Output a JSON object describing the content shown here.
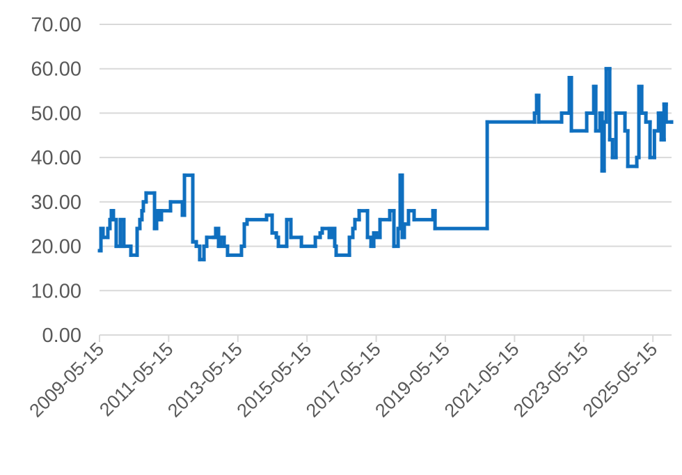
{
  "chart_data": {
    "type": "step-line",
    "step": "post",
    "x": [
      "2009-05-15",
      "2009-05-30",
      "2009-06-21",
      "2009-08-11",
      "2009-09-02",
      "2009-09-17",
      "2009-10-09",
      "2009-11-07",
      "2009-12-21",
      "2010-01-27",
      "2010-04-11",
      "2010-06-16",
      "2010-07-15",
      "2010-08-06",
      "2010-08-21",
      "2010-09-19",
      "2010-12-17",
      "2011-01-08",
      "2011-02-06",
      "2011-02-28",
      "2011-06-04",
      "2011-10-07",
      "2011-10-29",
      "2012-01-25",
      "2012-03-02",
      "2012-04-07",
      "2012-05-22",
      "2012-06-20",
      "2012-09-01",
      "2012-09-23",
      "2012-10-23",
      "2012-11-14",
      "2012-12-21",
      "2013-01-26",
      "2013-06-22",
      "2013-07-22",
      "2013-08-20",
      "2014-03-14",
      "2014-05-12",
      "2014-06-25",
      "2014-07-17",
      "2014-10-13",
      "2014-11-26",
      "2015-03-17",
      "2015-08-11",
      "2015-10-01",
      "2015-10-23",
      "2016-01-05",
      "2016-02-10",
      "2016-03-03",
      "2016-03-18",
      "2016-08-05",
      "2016-09-10",
      "2016-10-02",
      "2016-11-16",
      "2017-02-12",
      "2017-03-21",
      "2017-04-19",
      "2017-05-18",
      "2017-06-24",
      "2017-10-05",
      "2017-11-18",
      "2018-01-01",
      "2018-01-23",
      "2018-02-14",
      "2018-03-08",
      "2018-04-21",
      "2018-06-19",
      "2019-01-04",
      "2019-01-26",
      "2020-07-30",
      "2021-12-12",
      "2022-01-03",
      "2022-01-25",
      "2022-09-24",
      "2022-12-14",
      "2023-01-05",
      "2023-06-16",
      "2023-08-29",
      "2023-09-20",
      "2023-11-03",
      "2023-11-25",
      "2023-12-17",
      "2024-01-08",
      "2024-02-14",
      "2024-03-14",
      "2024-04-20",
      "2024-07-24",
      "2024-08-23",
      "2024-11-26",
      "2024-12-18",
      "2025-01-17",
      "2025-03-02",
      "2025-04-15",
      "2025-05-31",
      "2025-07-13",
      "2025-08-11",
      "2025-09-10",
      "2025-10-02",
      "2025-11-28"
    ],
    "series": [
      {
        "color": "#0f6fbf",
        "values": [
          19,
          24,
          22,
          24,
          26,
          28,
          26,
          20,
          26,
          20,
          18,
          24,
          26,
          28,
          30,
          32,
          24,
          28,
          26,
          28,
          30,
          27,
          36,
          21,
          20,
          17,
          20,
          22,
          22,
          24,
          20,
          22,
          20,
          18,
          20,
          25,
          26,
          27,
          23,
          22,
          20,
          26,
          22,
          20,
          22,
          23,
          24,
          22,
          24,
          20,
          18,
          22,
          24,
          26,
          28,
          22,
          20,
          23,
          22,
          26,
          28,
          20,
          24,
          36,
          22,
          25,
          28,
          26,
          28,
          24,
          48,
          50,
          54,
          48,
          50,
          58,
          46,
          50,
          56,
          46,
          50,
          37,
          48,
          60,
          44,
          40,
          50,
          46,
          38,
          40,
          56,
          50,
          48,
          40,
          46,
          50,
          44,
          52,
          48,
          48
        ]
      }
    ],
    "xlim": [
      "2009-05-15",
      "2025-11-28"
    ],
    "xticks": [
      "2009-05-15",
      "2011-05-15",
      "2013-05-15",
      "2015-05-15",
      "2017-05-15",
      "2019-05-15",
      "2021-05-15",
      "2023-05-15",
      "2025-05-15"
    ],
    "ylim": [
      0,
      70
    ],
    "yticks": [
      {
        "value": 0,
        "label": "0.00"
      },
      {
        "value": 10,
        "label": "10.00"
      },
      {
        "value": 20,
        "label": "20.00"
      },
      {
        "value": 30,
        "label": "30.00"
      },
      {
        "value": 40,
        "label": "40.00"
      },
      {
        "value": 50,
        "label": "50.00"
      },
      {
        "value": 60,
        "label": "60.00"
      },
      {
        "value": 70,
        "label": "70.00"
      }
    ],
    "grid": true
  }
}
